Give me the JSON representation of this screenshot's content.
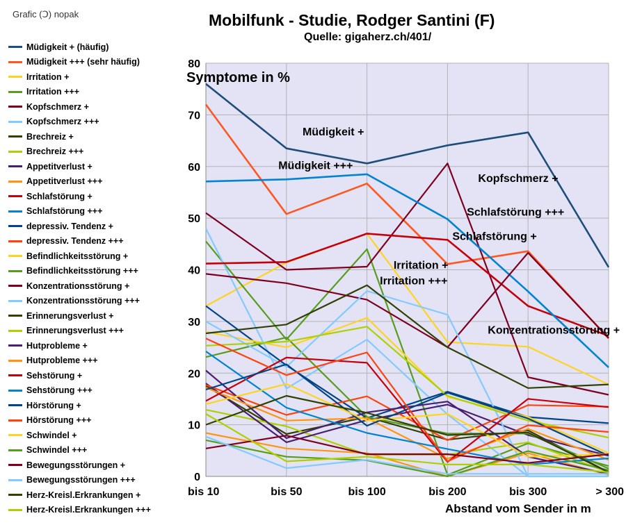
{
  "credit": "Grafic (Ↄ) nopak",
  "chart_data": {
    "type": "line",
    "title": "Mobilfunk - Studie,  Rodger Santini (F)",
    "subtitle": "Quelle: gigaherz.ch/401/",
    "ylabel": "Symptome in %",
    "xlabel": "Abstand vom Sender in  m",
    "categories": [
      "bis 10",
      "bis 50",
      "bis 100",
      "bis 200",
      "bis 300",
      "> 300"
    ],
    "ylim": [
      0,
      80
    ],
    "yticks": [
      "0",
      "10",
      "20",
      "30",
      "40",
      "50",
      "60",
      "70",
      "80"
    ],
    "grid": true,
    "legend_position": "left",
    "series": [
      {
        "name": "Müdigkeit + (häufig)",
        "color": "#1f4e79",
        "values": [
          76,
          63.5,
          60.6,
          64.1,
          66.6,
          40.5
        ]
      },
      {
        "name": "Müdigkeit +++ (sehr häufig)",
        "color": "#ff5722",
        "values": [
          72,
          50.8,
          56.7,
          41.1,
          43.6,
          26.7
        ]
      },
      {
        "name": "Irritation +",
        "color": "#ffd320",
        "values": [
          33,
          41.4,
          47,
          26,
          25.1,
          17.8
        ]
      },
      {
        "name": "Irritation +++",
        "color": "#579d1c",
        "values": [
          45.5,
          26.5,
          44,
          0.3,
          6.4,
          2
        ]
      },
      {
        "name": "Kopfschmerz +",
        "color": "#7e0021",
        "values": [
          51,
          40,
          40.6,
          60.6,
          19.2,
          15.8
        ]
      },
      {
        "name": "Kopfschmerz +++",
        "color": "#83caff",
        "values": [
          48,
          17,
          26.5,
          12,
          0,
          0
        ]
      },
      {
        "name": "Brechreiz +",
        "color": "#314004",
        "values": [
          17.5,
          8.2,
          11.5,
          7.1,
          8.9,
          0.8
        ]
      },
      {
        "name": "Brechreiz +++",
        "color": "#aecf00",
        "values": [
          12.9,
          9.7,
          4.2,
          4.2,
          6.6,
          0.8
        ]
      },
      {
        "name": "Appetitverlust +",
        "color": "#4b1f6f",
        "values": [
          18,
          6.6,
          10.9,
          13.9,
          8,
          4
        ]
      },
      {
        "name": "Appetitverlust +++",
        "color": "#ff950e",
        "values": [
          8.4,
          5.4,
          4.5,
          0,
          4.5,
          0.3
        ]
      },
      {
        "name": "Schlafstörung +",
        "color": "#c5000b",
        "values": [
          41.2,
          41.5,
          47,
          45.8,
          33,
          27.2
        ]
      },
      {
        "name": "Schlafstörung +++",
        "color": "#0084d1",
        "values": [
          57.1,
          57.5,
          58.5,
          49.8,
          35.8,
          21.1
        ]
      },
      {
        "name": "depressiv. Tendenz +",
        "color": "#004586",
        "values": [
          33,
          21.5,
          11.3,
          16.4,
          11.5,
          10.3
        ]
      },
      {
        "name": "depressiv. Tendenz +++",
        "color": "#ff420e",
        "values": [
          17.7,
          11.9,
          15.5,
          7,
          13.8,
          13.5
        ]
      },
      {
        "name": "Befindlichkeitsstörung +",
        "color": "#ffd320",
        "values": [
          28,
          25,
          30.7,
          15.4,
          11.5,
          4.5
        ]
      },
      {
        "name": "Befindlichkeitsstörung +++",
        "color": "#579d1c",
        "values": [
          23.1,
          26.9,
          11.5,
          8.3,
          8.3,
          1.5
        ]
      },
      {
        "name": "Konzentrationsstörung +",
        "color": "#7e0021",
        "values": [
          39.2,
          37.4,
          34.2,
          25,
          43.3,
          26.8
        ]
      },
      {
        "name": "Konzentrationsstörung +++",
        "color": "#83caff",
        "values": [
          30,
          21.2,
          35.9,
          31.3,
          0,
          0
        ]
      },
      {
        "name": "Erinnerungsverlust +",
        "color": "#314004",
        "values": [
          27.7,
          29.4,
          37,
          25,
          17.1,
          17.8
        ]
      },
      {
        "name": "Erinnerungsverlust +++",
        "color": "#aecf00",
        "values": [
          25.3,
          26.1,
          29,
          15.6,
          10.8,
          7.5
        ]
      },
      {
        "name": "Hutprobleme +",
        "color": "#4b1f6f",
        "values": [
          20.5,
          7.4,
          12.4,
          14.5,
          3.8,
          0.5
        ]
      },
      {
        "name": "Hutprobleme +++",
        "color": "#ff950e",
        "values": [
          17.2,
          10.8,
          11.3,
          3.4,
          9.2,
          3.2
        ]
      },
      {
        "name": "Sehstörung +",
        "color": "#c5000b",
        "values": [
          14.6,
          23,
          22,
          2.8,
          15,
          13.4
        ]
      },
      {
        "name": "Sehstörung +++",
        "color": "#0084d1",
        "values": [
          24.2,
          13.3,
          8.4,
          5.3,
          2.3,
          3.5
        ]
      },
      {
        "name": "Hörstörung +",
        "color": "#004586",
        "values": [
          16.8,
          21.7,
          9.8,
          16.2,
          11.2,
          4
        ]
      },
      {
        "name": "Hörstörung +++",
        "color": "#ff420e",
        "values": [
          26.7,
          19.6,
          24,
          2.9,
          9.9,
          8.6
        ]
      },
      {
        "name": "Schwindel +",
        "color": "#ffd320",
        "values": [
          14,
          17.9,
          10.8,
          12.1,
          3.8,
          4.3
        ]
      },
      {
        "name": "Schwindel +++",
        "color": "#579d1c",
        "values": [
          7,
          3.8,
          3.1,
          0,
          4.9,
          1.2
        ]
      },
      {
        "name": "Bewegungsstörungen +",
        "color": "#7e0021",
        "values": [
          5.4,
          7.9,
          4.3,
          4.3,
          2.6,
          4.3
        ]
      },
      {
        "name": "Bewegungsstörungen +++",
        "color": "#83caff",
        "values": [
          7.7,
          1.6,
          3.2,
          0.5,
          0.5,
          0.5
        ]
      },
      {
        "name": "Herz-Kreisl.Erkrankungen +",
        "color": "#314004",
        "values": [
          10,
          15.6,
          12.3,
          8,
          8.5,
          0.8
        ]
      },
      {
        "name": "Herz-Kreisl.Erkrankungen +++",
        "color": "#aecf00",
        "values": [
          12.1,
          2.9,
          3.8,
          2.3,
          2.3,
          0.8
        ]
      }
    ],
    "annotations": [
      {
        "text": "Müdigkeit +",
        "x": 1.2,
        "y": 66
      },
      {
        "text": "Müdigkeit +++",
        "x": 0.9,
        "y": 59.5
      },
      {
        "text": "Kopfschmerz +",
        "x": 3.38,
        "y": 57
      },
      {
        "text": "Schlafstörung +++",
        "x": 3.24,
        "y": 50.5
      },
      {
        "text": "Schlafstörung +",
        "x": 3.06,
        "y": 45.8
      },
      {
        "text": "Irritation +",
        "x": 2.33,
        "y": 40.2
      },
      {
        "text": "Irritation +++",
        "x": 2.16,
        "y": 37.2
      },
      {
        "text": "Konzentrationsstörung +",
        "x": 3.5,
        "y": 27.6
      }
    ]
  }
}
